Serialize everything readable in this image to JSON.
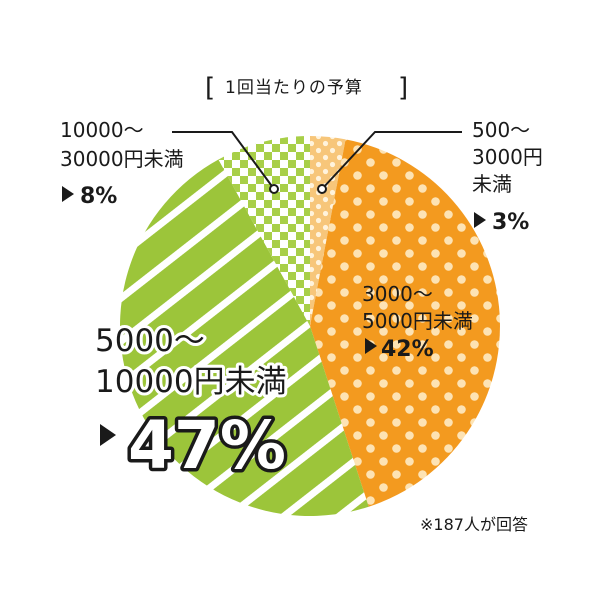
{
  "chart_data": {
    "type": "pie",
    "title": "1回当たりの予算",
    "title_brackets": {
      "open": "[",
      "close": "]"
    },
    "footnote": "※187人が回答",
    "start_angle_deg": 0,
    "direction": "clockwise",
    "slices": [
      {
        "label_lines": [
          "500〜",
          "3000円",
          "未満"
        ],
        "value": 3,
        "pct_text": "3%",
        "color": "#f7c67a",
        "pattern": "small-dots"
      },
      {
        "label_lines": [
          "3000〜",
          "5000円未満"
        ],
        "value": 42,
        "pct_text": "42%",
        "color": "#f39a1f",
        "pattern": "dots"
      },
      {
        "label_lines": [
          "5000〜",
          "10000円未満"
        ],
        "value": 47,
        "pct_text": "47%",
        "color": "#9cc53a",
        "pattern": "diagonal-stripes"
      },
      {
        "label_lines": [
          "10000〜",
          "30000円未満"
        ],
        "value": 8,
        "pct_text": "8%",
        "color": "#a8cf48",
        "pattern": "checker"
      }
    ]
  }
}
